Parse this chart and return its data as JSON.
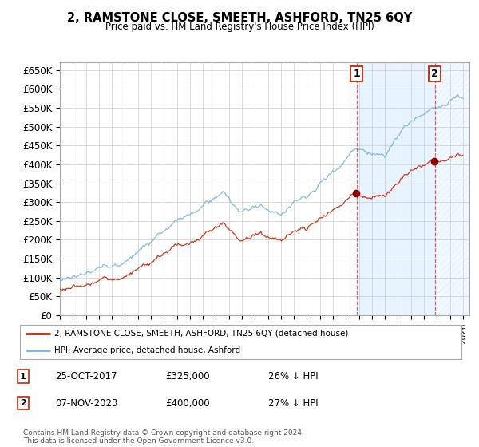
{
  "title": "2, RAMSTONE CLOSE, SMEETH, ASHFORD, TN25 6QY",
  "subtitle": "Price paid vs. HM Land Registry's House Price Index (HPI)",
  "ylim": [
    0,
    670000
  ],
  "yticks": [
    0,
    50000,
    100000,
    150000,
    200000,
    250000,
    300000,
    350000,
    400000,
    450000,
    500000,
    550000,
    600000,
    650000
  ],
  "xlim_start": 1995.0,
  "xlim_end": 2026.5,
  "sale1_date": 2017.82,
  "sale1_price": 325000,
  "sale2_date": 2023.85,
  "sale2_price": 400000,
  "hpi_color": "#7ab3d9",
  "price_color": "#cc2200",
  "dot_color": "#8b0000",
  "shade_color": "#ddeeff",
  "vline_color": "#cc4444",
  "legend_label1": "2, RAMSTONE CLOSE, SMEETH, ASHFORD, TN25 6QY (detached house)",
  "legend_label2": "HPI: Average price, detached house, Ashford",
  "table_row1": [
    "1",
    "25-OCT-2017",
    "£325,000",
    "26% ↓ HPI"
  ],
  "table_row2": [
    "2",
    "07-NOV-2023",
    "£400,000",
    "27% ↓ HPI"
  ],
  "footer": "Contains HM Land Registry data © Crown copyright and database right 2024.\nThis data is licensed under the Open Government Licence v3.0.",
  "background_color": "#ffffff",
  "grid_color": "#cccccc",
  "seed": 1234
}
